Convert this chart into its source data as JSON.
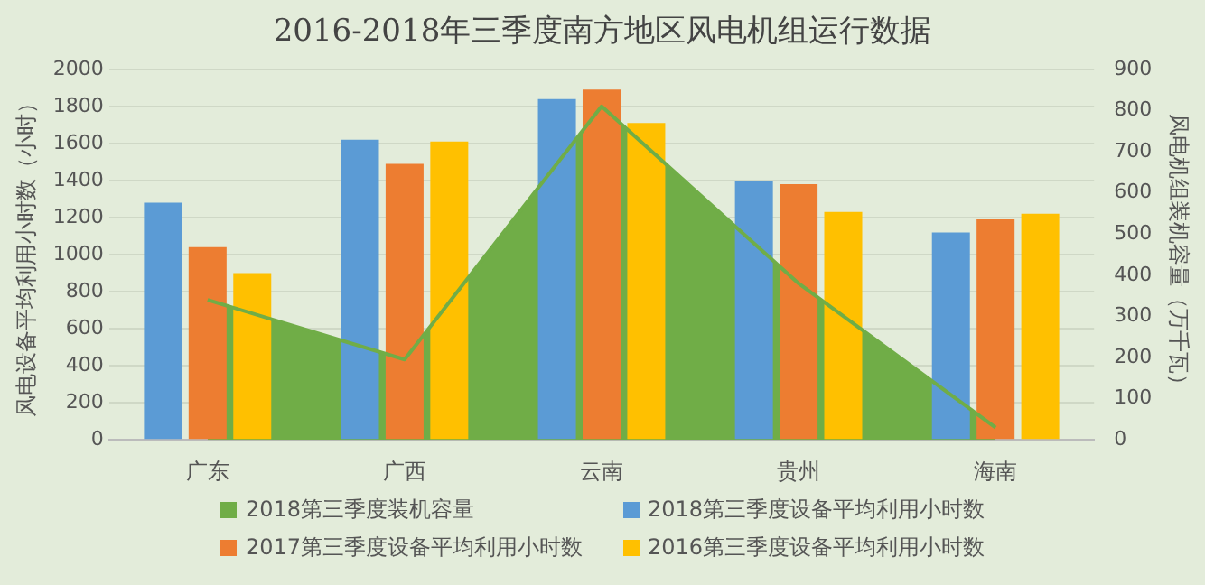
{
  "chart_data": {
    "type": "bar",
    "title": "2016-2018年三季度南方地区风电机组运行数据",
    "ylabel": "风电设备平均利用小时数（小时）",
    "y2label": "风电机组装机容量（万千瓦）",
    "categories": [
      "广东",
      "广西",
      "云南",
      "贵州",
      "海南"
    ],
    "series": [
      {
        "name": "2018第三季度装机容量",
        "type": "area",
        "axis": "y2",
        "color": "#70ad47",
        "values": [
          340,
          195,
          810,
          380,
          30
        ]
      },
      {
        "name": "2018第三季度设备平均利用小时数",
        "color": "#5b9bd5",
        "values": [
          1280,
          1620,
          1840,
          1400,
          1120
        ]
      },
      {
        "name": "2017第三季度设备平均利用小时数",
        "color": "#ed7d31",
        "values": [
          1040,
          1490,
          1890,
          1380,
          1190
        ]
      },
      {
        "name": "2016第三季度设备平均利用小时数",
        "color": "#ffc000",
        "values": [
          900,
          1610,
          1710,
          1230,
          1220
        ]
      }
    ],
    "ylim": [
      0,
      2000
    ],
    "yticks": [
      0,
      200,
      400,
      600,
      800,
      1000,
      1200,
      1400,
      1600,
      1800,
      2000
    ],
    "y2lim": [
      0,
      900
    ],
    "y2ticks": [
      0,
      100,
      200,
      300,
      400,
      500,
      600,
      700,
      800,
      900
    ],
    "grid": "y",
    "legend": "bottom"
  }
}
